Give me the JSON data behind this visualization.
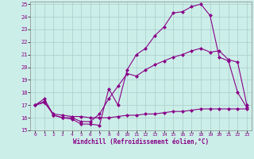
{
  "xlabel": "Windchill (Refroidissement éolien,°C)",
  "xlim": [
    -0.5,
    23.5
  ],
  "ylim": [
    15,
    25.2
  ],
  "yticks": [
    15,
    16,
    17,
    18,
    19,
    20,
    21,
    22,
    23,
    24,
    25
  ],
  "xticks": [
    0,
    1,
    2,
    3,
    4,
    5,
    6,
    7,
    8,
    9,
    10,
    11,
    12,
    13,
    14,
    15,
    16,
    17,
    18,
    19,
    20,
    21,
    22,
    23
  ],
  "bg_color": "#cceee8",
  "line_color": "#880088",
  "grid_color": "#aacccc",
  "line1_x": [
    0,
    1,
    2,
    3,
    4,
    5,
    6,
    7,
    8,
    9,
    10,
    11,
    12,
    13,
    14,
    15,
    16,
    17,
    18,
    19,
    20,
    21,
    22,
    23
  ],
  "line1_y": [
    17.0,
    17.5,
    16.2,
    16.0,
    15.9,
    15.5,
    15.5,
    15.4,
    18.3,
    17.0,
    19.8,
    21.0,
    21.5,
    22.5,
    23.2,
    24.3,
    24.4,
    24.8,
    25.0,
    24.1,
    20.8,
    20.5,
    18.0,
    16.8
  ],
  "line2_x": [
    0,
    1,
    2,
    3,
    4,
    5,
    6,
    7,
    8,
    9,
    10,
    11,
    12,
    13,
    14,
    15,
    16,
    17,
    18,
    19,
    20,
    21,
    22,
    23
  ],
  "line2_y": [
    17.0,
    17.3,
    16.2,
    16.0,
    16.0,
    15.7,
    15.7,
    16.3,
    17.5,
    18.5,
    19.5,
    19.3,
    19.8,
    20.2,
    20.5,
    20.8,
    21.0,
    21.3,
    21.5,
    21.2,
    21.3,
    20.6,
    20.4,
    17.0
  ],
  "line3_x": [
    0,
    1,
    2,
    3,
    4,
    5,
    6,
    7,
    8,
    9,
    10,
    11,
    12,
    13,
    14,
    15,
    16,
    17,
    18,
    19,
    20,
    21,
    22,
    23
  ],
  "line3_y": [
    17.0,
    17.2,
    16.3,
    16.2,
    16.1,
    16.1,
    16.0,
    16.0,
    16.0,
    16.1,
    16.2,
    16.2,
    16.3,
    16.3,
    16.4,
    16.5,
    16.5,
    16.6,
    16.7,
    16.7,
    16.7,
    16.7,
    16.7,
    16.7
  ]
}
